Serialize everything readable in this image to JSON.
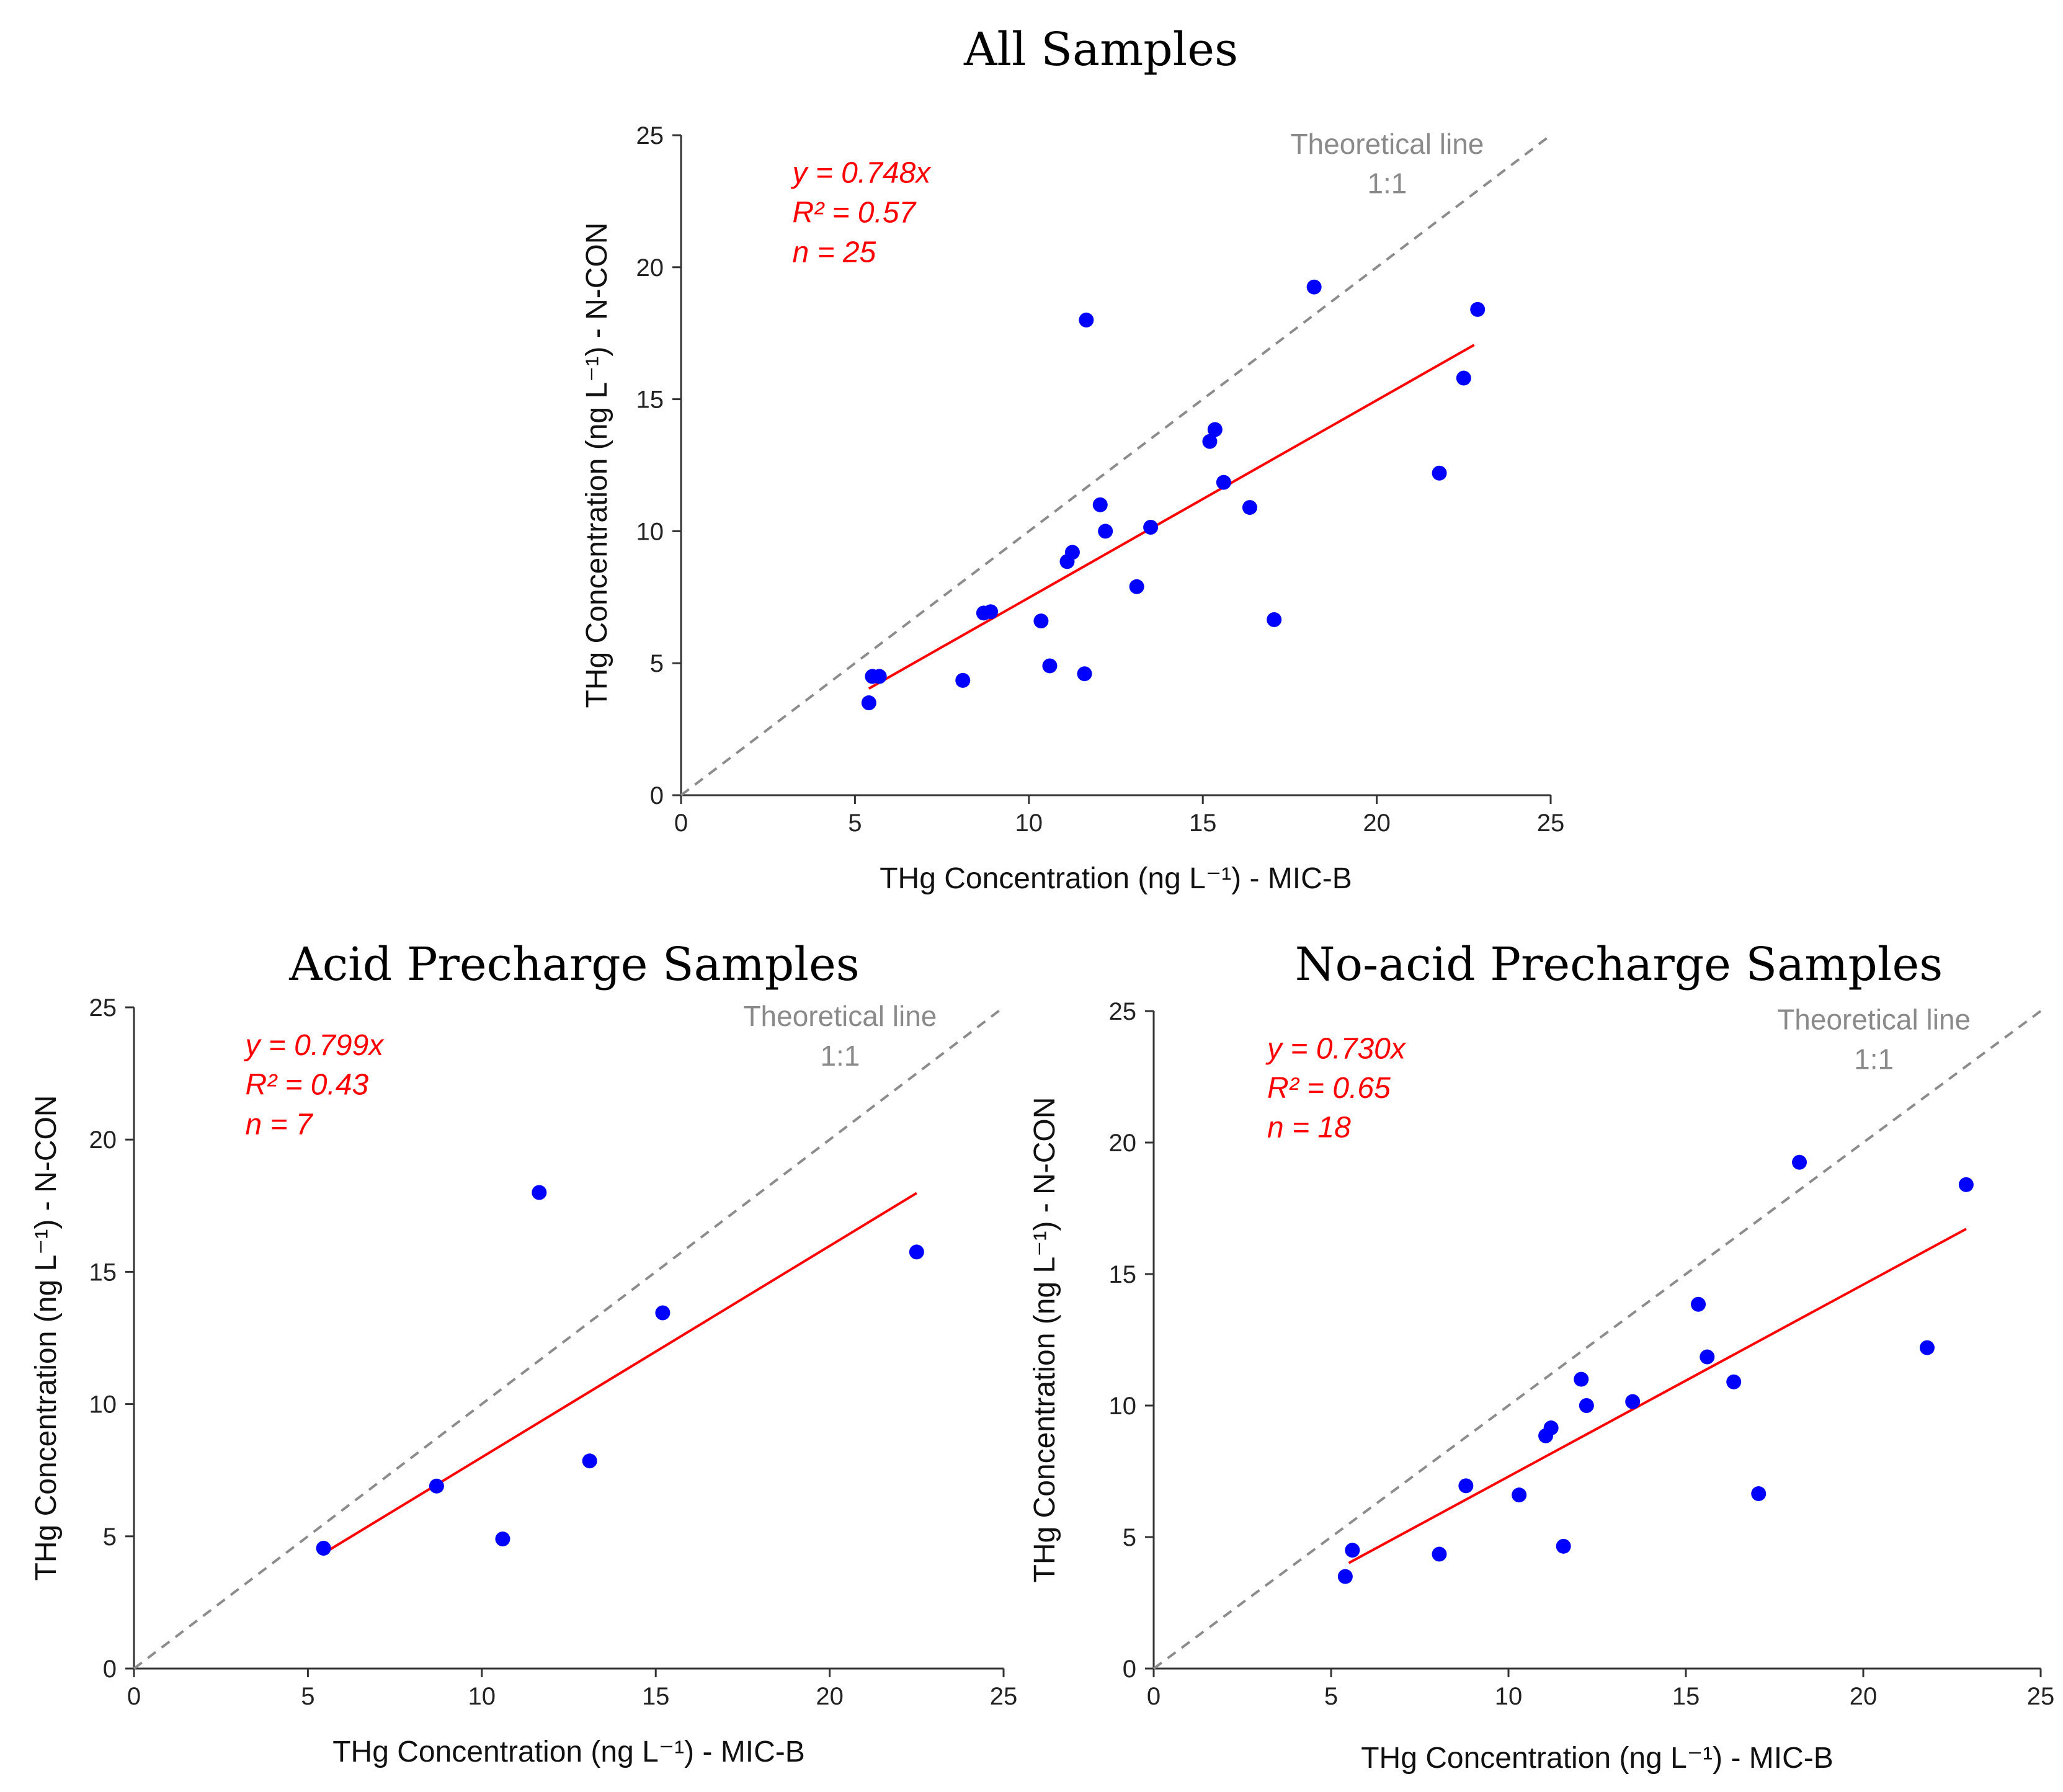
{
  "chart_data": [
    {
      "type": "scatter",
      "title": "All Samples",
      "xlabel": "THg Concentration (ng L⁻¹) - MIC-B",
      "ylabel": "THg Concentration (ng L⁻¹) - N-CON",
      "xlim": [
        0,
        25
      ],
      "ylim": [
        0,
        25
      ],
      "ticks": [
        0,
        5,
        10,
        15,
        20,
        25
      ],
      "equation": {
        "y": "y = 0.748x",
        "r2": "R² = 0.57",
        "n": "n = 25"
      },
      "fit": {
        "slope": 0.748,
        "x_range": [
          5.4,
          22.8
        ]
      },
      "reference": {
        "label": "Theoretical line",
        "ratio": "1:1"
      },
      "points": [
        {
          "x": 5.4,
          "y": 3.5
        },
        {
          "x": 5.5,
          "y": 4.5
        },
        {
          "x": 5.7,
          "y": 4.5
        },
        {
          "x": 8.1,
          "y": 4.35
        },
        {
          "x": 8.7,
          "y": 6.9
        },
        {
          "x": 8.9,
          "y": 6.95
        },
        {
          "x": 10.35,
          "y": 6.6
        },
        {
          "x": 10.6,
          "y": 4.9
        },
        {
          "x": 11.1,
          "y": 8.85
        },
        {
          "x": 11.25,
          "y": 9.2
        },
        {
          "x": 11.6,
          "y": 4.6
        },
        {
          "x": 11.65,
          "y": 18.0
        },
        {
          "x": 12.05,
          "y": 11.0
        },
        {
          "x": 12.2,
          "y": 10.0
        },
        {
          "x": 13.1,
          "y": 7.9
        },
        {
          "x": 13.5,
          "y": 10.15
        },
        {
          "x": 15.2,
          "y": 13.4
        },
        {
          "x": 15.35,
          "y": 13.85
        },
        {
          "x": 15.6,
          "y": 11.85
        },
        {
          "x": 16.35,
          "y": 10.9
        },
        {
          "x": 17.05,
          "y": 6.65
        },
        {
          "x": 18.2,
          "y": 19.25
        },
        {
          "x": 21.8,
          "y": 12.2
        },
        {
          "x": 22.5,
          "y": 15.8
        },
        {
          "x": 22.9,
          "y": 18.4
        }
      ]
    },
    {
      "type": "scatter",
      "title": "Acid Precharge Samples",
      "xlabel": "THg Concentration (ng L⁻¹) - MIC-B",
      "ylabel": "THg Concentration (ng L⁻¹) - N-CON",
      "xlim": [
        0,
        25
      ],
      "ylim": [
        0,
        25
      ],
      "ticks": [
        0,
        5,
        10,
        15,
        20,
        25
      ],
      "equation": {
        "y": "y = 0.799x",
        "r2": "R² = 0.43",
        "n": "n = 7"
      },
      "fit": {
        "slope": 0.799,
        "x_range": [
          5.5,
          22.5
        ]
      },
      "reference": {
        "label": "Theoretical line",
        "ratio": "1:1"
      },
      "points": [
        {
          "x": 5.45,
          "y": 4.55
        },
        {
          "x": 8.7,
          "y": 6.9
        },
        {
          "x": 10.6,
          "y": 4.9
        },
        {
          "x": 11.65,
          "y": 18.0
        },
        {
          "x": 13.1,
          "y": 7.85
        },
        {
          "x": 15.2,
          "y": 13.45
        },
        {
          "x": 22.5,
          "y": 15.75
        }
      ]
    },
    {
      "type": "scatter",
      "title": "No-acid Precharge Samples",
      "xlabel": "THg Concentration (ng L⁻¹) - MIC-B",
      "ylabel": "THg Concentration (ng L⁻¹) - N-CON",
      "xlim": [
        0,
        25
      ],
      "ylim": [
        0,
        25
      ],
      "ticks": [
        0,
        5,
        10,
        15,
        20,
        25
      ],
      "equation": {
        "y": "y = 0.730x",
        "r2": "R² = 0.65",
        "n": "n = 18"
      },
      "fit": {
        "slope": 0.73,
        "x_range": [
          5.5,
          22.9
        ]
      },
      "reference": {
        "label": "Theoretical line",
        "ratio": "1:1"
      },
      "points": [
        {
          "x": 5.4,
          "y": 3.5
        },
        {
          "x": 5.6,
          "y": 4.5
        },
        {
          "x": 8.05,
          "y": 4.35
        },
        {
          "x": 8.8,
          "y": 6.95
        },
        {
          "x": 10.3,
          "y": 6.6
        },
        {
          "x": 11.05,
          "y": 8.85
        },
        {
          "x": 11.2,
          "y": 9.15
        },
        {
          "x": 11.55,
          "y": 4.65
        },
        {
          "x": 12.05,
          "y": 11.0
        },
        {
          "x": 12.2,
          "y": 10.0
        },
        {
          "x": 13.5,
          "y": 10.15
        },
        {
          "x": 15.35,
          "y": 13.85
        },
        {
          "x": 15.6,
          "y": 11.85
        },
        {
          "x": 16.35,
          "y": 10.9
        },
        {
          "x": 17.05,
          "y": 6.65
        },
        {
          "x": 18.2,
          "y": 19.25
        },
        {
          "x": 21.8,
          "y": 12.2
        },
        {
          "x": 22.9,
          "y": 18.4
        }
      ]
    }
  ]
}
